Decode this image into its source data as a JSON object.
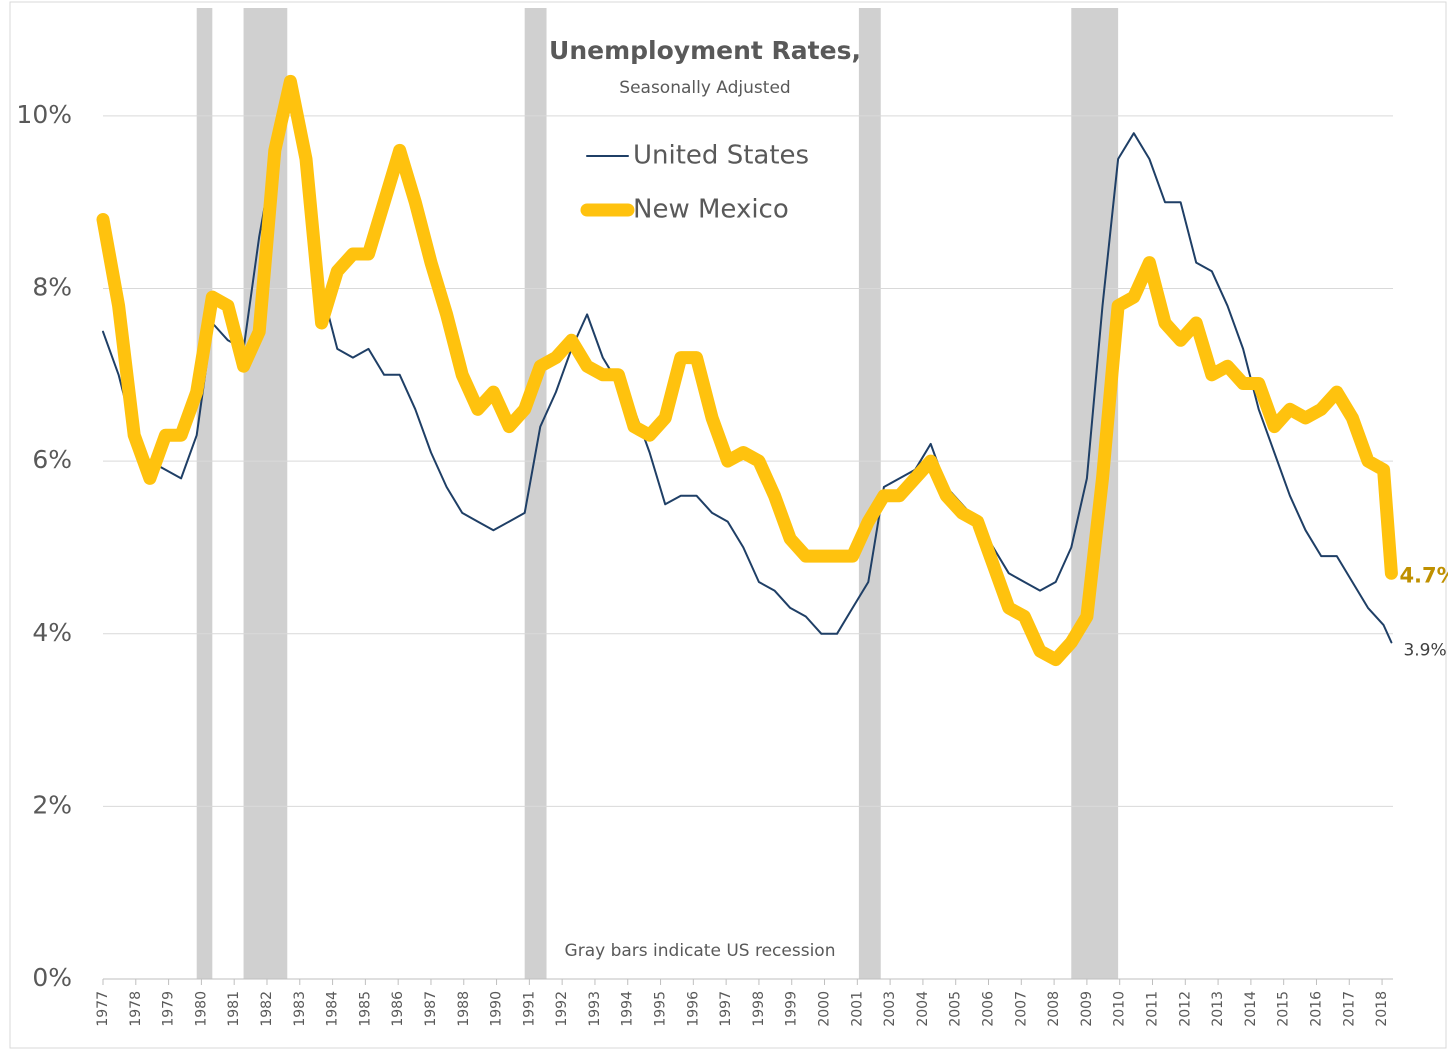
{
  "chart_data": {
    "type": "line",
    "title": "Unemployment Rates,",
    "subtitle": "Seasonally Adjusted",
    "annotation": "Gray bars indicate US recession",
    "recession_color": "#d0d0d0",
    "recessions": [
      [
        1980.0,
        1980.5
      ],
      [
        1981.5,
        1982.9
      ],
      [
        1990.5,
        1991.2
      ],
      [
        2001.2,
        2001.9
      ],
      [
        2008.0,
        2009.5
      ]
    ],
    "x": [
      1977.0,
      1977.5,
      1978.0,
      1978.5,
      1979.0,
      1979.5,
      1980.0,
      1980.5,
      1981.0,
      1981.5,
      1982.0,
      1982.5,
      1983.0,
      1983.5,
      1984.0,
      1984.5,
      1985.0,
      1985.5,
      1986.0,
      1986.5,
      1987.0,
      1987.5,
      1988.0,
      1988.5,
      1989.0,
      1989.5,
      1990.0,
      1990.5,
      1991.0,
      1991.5,
      1992.0,
      1992.5,
      1993.0,
      1993.5,
      1994.0,
      1994.5,
      1995.0,
      1995.5,
      1996.0,
      1996.5,
      1997.0,
      1997.5,
      1998.0,
      1998.5,
      1999.0,
      1999.5,
      2000.0,
      2000.5,
      2001.0,
      2001.5,
      2002.0,
      2002.5,
      2003.0,
      2003.5,
      2004.0,
      2004.5,
      2005.0,
      2005.5,
      2006.0,
      2006.5,
      2007.0,
      2007.5,
      2008.0,
      2008.5,
      2009.0,
      2009.5,
      2010.0,
      2010.5,
      2011.0,
      2011.5,
      2012.0,
      2012.5,
      2013.0,
      2013.5,
      2014.0,
      2014.5,
      2015.0,
      2015.5,
      2016.0,
      2016.5,
      2017.0,
      2017.5,
      2018.0,
      2018.25
    ],
    "series": [
      {
        "name": "United States",
        "color": "#1f3f66",
        "end_label": "3.9%",
        "values": [
          7.5,
          7.0,
          6.3,
          6.0,
          5.9,
          5.8,
          6.3,
          7.6,
          7.4,
          7.3,
          8.6,
          9.6,
          10.4,
          9.5,
          8.0,
          7.3,
          7.2,
          7.3,
          7.0,
          7.0,
          6.6,
          6.1,
          5.7,
          5.4,
          5.3,
          5.2,
          5.3,
          5.4,
          6.4,
          6.8,
          7.3,
          7.7,
          7.2,
          6.9,
          6.6,
          6.1,
          5.5,
          5.6,
          5.6,
          5.4,
          5.3,
          5.0,
          4.6,
          4.5,
          4.3,
          4.2,
          4.0,
          4.0,
          4.3,
          4.6,
          5.7,
          5.8,
          5.9,
          6.2,
          5.7,
          5.5,
          5.3,
          5.0,
          4.7,
          4.6,
          4.5,
          4.6,
          5.0,
          5.8,
          7.8,
          9.5,
          9.8,
          9.5,
          9.0,
          9.0,
          8.3,
          8.2,
          7.8,
          7.3,
          6.6,
          6.1,
          5.6,
          5.2,
          4.9,
          4.9,
          4.6,
          4.3,
          4.1,
          3.9
        ]
      },
      {
        "name": "New Mexico",
        "color": "#ffc20e",
        "end_label": "4.7%",
        "values": [
          8.8,
          7.8,
          6.3,
          5.8,
          6.3,
          6.3,
          6.8,
          7.9,
          7.8,
          7.1,
          7.5,
          9.6,
          10.4,
          9.5,
          7.6,
          8.2,
          8.4,
          8.4,
          9.0,
          9.6,
          9.0,
          8.3,
          7.7,
          7.0,
          6.6,
          6.8,
          6.4,
          6.6,
          7.1,
          7.2,
          7.4,
          7.1,
          7.0,
          7.0,
          6.4,
          6.3,
          6.5,
          7.2,
          7.2,
          6.5,
          6.0,
          6.1,
          6.0,
          5.6,
          5.1,
          4.9,
          4.9,
          4.9,
          4.9,
          5.3,
          5.6,
          5.6,
          5.8,
          6.0,
          5.6,
          5.4,
          5.3,
          4.8,
          4.3,
          4.2,
          3.8,
          3.7,
          3.9,
          4.2,
          5.8,
          7.8,
          7.9,
          8.3,
          7.6,
          7.4,
          7.6,
          7.0,
          7.1,
          6.9,
          6.9,
          6.4,
          6.6,
          6.5,
          6.6,
          6.8,
          6.5,
          6.0,
          5.9,
          4.7
        ]
      }
    ],
    "xlim": [
      1977,
      2018.3
    ],
    "xticks": [
      {
        "value": 1977,
        "label": "1977"
      },
      {
        "value": 1978.05,
        "label": "1978"
      },
      {
        "value": 1979.1,
        "label": "1979"
      },
      {
        "value": 1980.15,
        "label": "1980"
      },
      {
        "value": 1981.2,
        "label": "1981"
      },
      {
        "value": 1982.25,
        "label": "1982"
      },
      {
        "value": 1983.3,
        "label": "1983"
      },
      {
        "value": 1984.35,
        "label": "1984"
      },
      {
        "value": 1985.4,
        "label": "1985"
      },
      {
        "value": 1986.45,
        "label": "1986"
      },
      {
        "value": 1987.5,
        "label": "1987"
      },
      {
        "value": 1988.55,
        "label": "1988"
      },
      {
        "value": 1989.6,
        "label": "1990"
      },
      {
        "value": 1990.65,
        "label": "1991"
      },
      {
        "value": 1991.7,
        "label": "1992"
      },
      {
        "value": 1992.75,
        "label": "1993"
      },
      {
        "value": 1993.8,
        "label": "1994"
      },
      {
        "value": 1994.85,
        "label": "1995"
      },
      {
        "value": 1995.9,
        "label": "1996"
      },
      {
        "value": 1996.95,
        "label": "1997"
      },
      {
        "value": 1998,
        "label": "1998"
      },
      {
        "value": 1999.05,
        "label": "1999"
      },
      {
        "value": 2000.1,
        "label": "2000"
      },
      {
        "value": 2001.15,
        "label": "2001"
      },
      {
        "value": 2002.2,
        "label": "2003"
      },
      {
        "value": 2003.25,
        "label": "2004"
      },
      {
        "value": 2004.3,
        "label": "2005"
      },
      {
        "value": 2005.35,
        "label": "2006"
      },
      {
        "value": 2006.4,
        "label": "2007"
      },
      {
        "value": 2007.45,
        "label": "2008"
      },
      {
        "value": 2008.5,
        "label": "2009"
      },
      {
        "value": 2009.55,
        "label": "2010"
      },
      {
        "value": 2010.6,
        "label": "2011"
      },
      {
        "value": 2011.65,
        "label": "2012"
      },
      {
        "value": 2012.7,
        "label": "2013"
      },
      {
        "value": 2013.75,
        "label": "2014"
      },
      {
        "value": 2014.8,
        "label": "2015"
      },
      {
        "value": 2015.85,
        "label": "2016"
      },
      {
        "value": 2016.9,
        "label": "2017"
      },
      {
        "value": 2017.95,
        "label": "2018"
      }
    ],
    "ylim": [
      0,
      11.25
    ],
    "yticks": [
      {
        "value": 0,
        "label": "0%"
      },
      {
        "value": 2,
        "label": "2%"
      },
      {
        "value": 4,
        "label": "4%"
      },
      {
        "value": 6,
        "label": "6%"
      },
      {
        "value": 8,
        "label": "8%"
      },
      {
        "value": 10,
        "label": "10%"
      }
    ],
    "grid": true
  }
}
